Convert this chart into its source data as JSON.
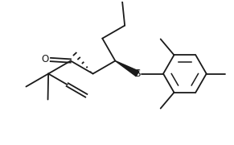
{
  "background": "#ffffff",
  "line_color": "#1a1a1a",
  "line_width": 1.3,
  "figsize": [
    2.91,
    1.8
  ],
  "dpi": 100,
  "xlim": [
    0,
    9.5
  ],
  "ylim": [
    0,
    5.8
  ]
}
